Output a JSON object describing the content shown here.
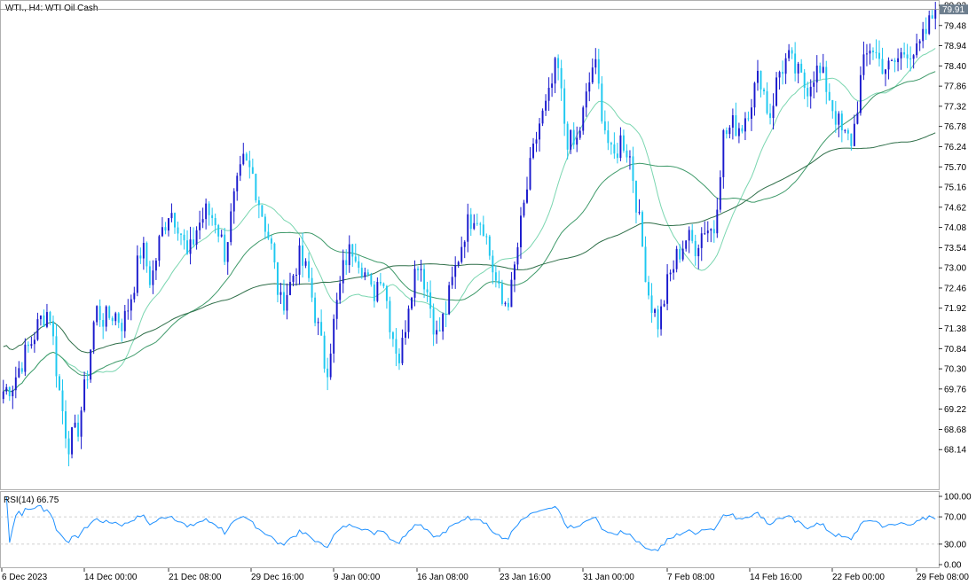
{
  "title": "WTI., H4:  WTI Oil Cash",
  "colors": {
    "bull": "#1a1acd",
    "bear": "#1ec8f0",
    "ma_fast": "#7ad6b0",
    "ma_mid": "#3f9a6a",
    "ma_slow": "#2e6e48",
    "rsi": "#1e90ff",
    "price_tag_bg": "#6d7e8e",
    "grid": "#c0c0c0"
  },
  "chart_data": [
    {
      "type": "candlestick",
      "title": "WTI., H4:  WTI Oil Cash",
      "ylim": [
        67.6,
        80.02
      ],
      "y_ticks": [
        "80.02",
        "79.48",
        "78.94",
        "78.40",
        "77.86",
        "77.32",
        "76.78",
        "76.24",
        "75.70",
        "75.16",
        "74.62",
        "74.08",
        "73.54",
        "73.00",
        "72.46",
        "71.92",
        "71.38",
        "70.84",
        "70.30",
        "69.76",
        "69.22",
        "68.68",
        "68.14"
      ],
      "x_labels": [
        "6 Dec 2023",
        "14 Dec 00:00",
        "21 Dec 08:00",
        "29 Dec 16:00",
        "9 Jan 00:00",
        "16 Jan 08:00",
        "23 Jan 16:00",
        "31 Jan 00:00",
        "7 Feb 08:00",
        "14 Feb 16:00",
        "22 Feb 00:00",
        "29 Feb 08:00"
      ],
      "last_price": "79.91",
      "bars_count": 300,
      "closes": [
        69.7,
        69.9,
        70.5,
        71.0,
        71.6,
        71.9,
        69.8,
        68.3,
        68.6,
        70.0,
        71.9,
        71.6,
        71.8,
        71.5,
        72.4,
        73.6,
        72.6,
        73.8,
        74.6,
        74.2,
        73.2,
        74.1,
        74.5,
        74.3,
        73.4,
        74.8,
        75.8,
        75.5,
        74.5,
        73.6,
        72.0,
        72.5,
        73.3,
        72.8,
        71.5,
        70.2,
        71.8,
        73.2,
        73.6,
        73.0,
        72.2,
        73.0,
        71.4,
        70.5,
        72.3,
        73.3,
        72.3,
        71.1,
        71.9,
        73.0,
        74.0,
        74.5,
        74.2,
        73.0,
        72.0,
        72.3,
        74.0,
        75.5,
        76.8,
        77.4,
        78.5,
        76.5,
        76.2,
        77.3,
        78.6,
        77.0,
        75.8,
        76.5,
        75.9,
        74.0,
        72.2,
        71.5,
        72.6,
        73.3,
        73.8,
        73.6,
        74.1,
        74.0,
        76.5,
        76.8,
        76.8,
        77.5,
        78.2,
        77.0,
        78.2,
        78.6,
        78.2,
        77.8,
        78.3,
        78.0,
        77.2,
        76.5,
        76.4,
        78.2,
        79.0,
        78.5,
        78.3,
        78.6,
        78.9,
        78.7,
        79.3,
        79.91
      ],
      "ma_fast_label": "",
      "ma_mid_label": "",
      "ma_slow_label": ""
    },
    {
      "type": "line",
      "title": "RSI(14) 66.75",
      "ylim": [
        0,
        100
      ],
      "y_ticks": [
        "100.00",
        "70.00",
        "30.00",
        "0.00"
      ],
      "levels": [
        70,
        30
      ],
      "last_value": 66.75
    }
  ]
}
